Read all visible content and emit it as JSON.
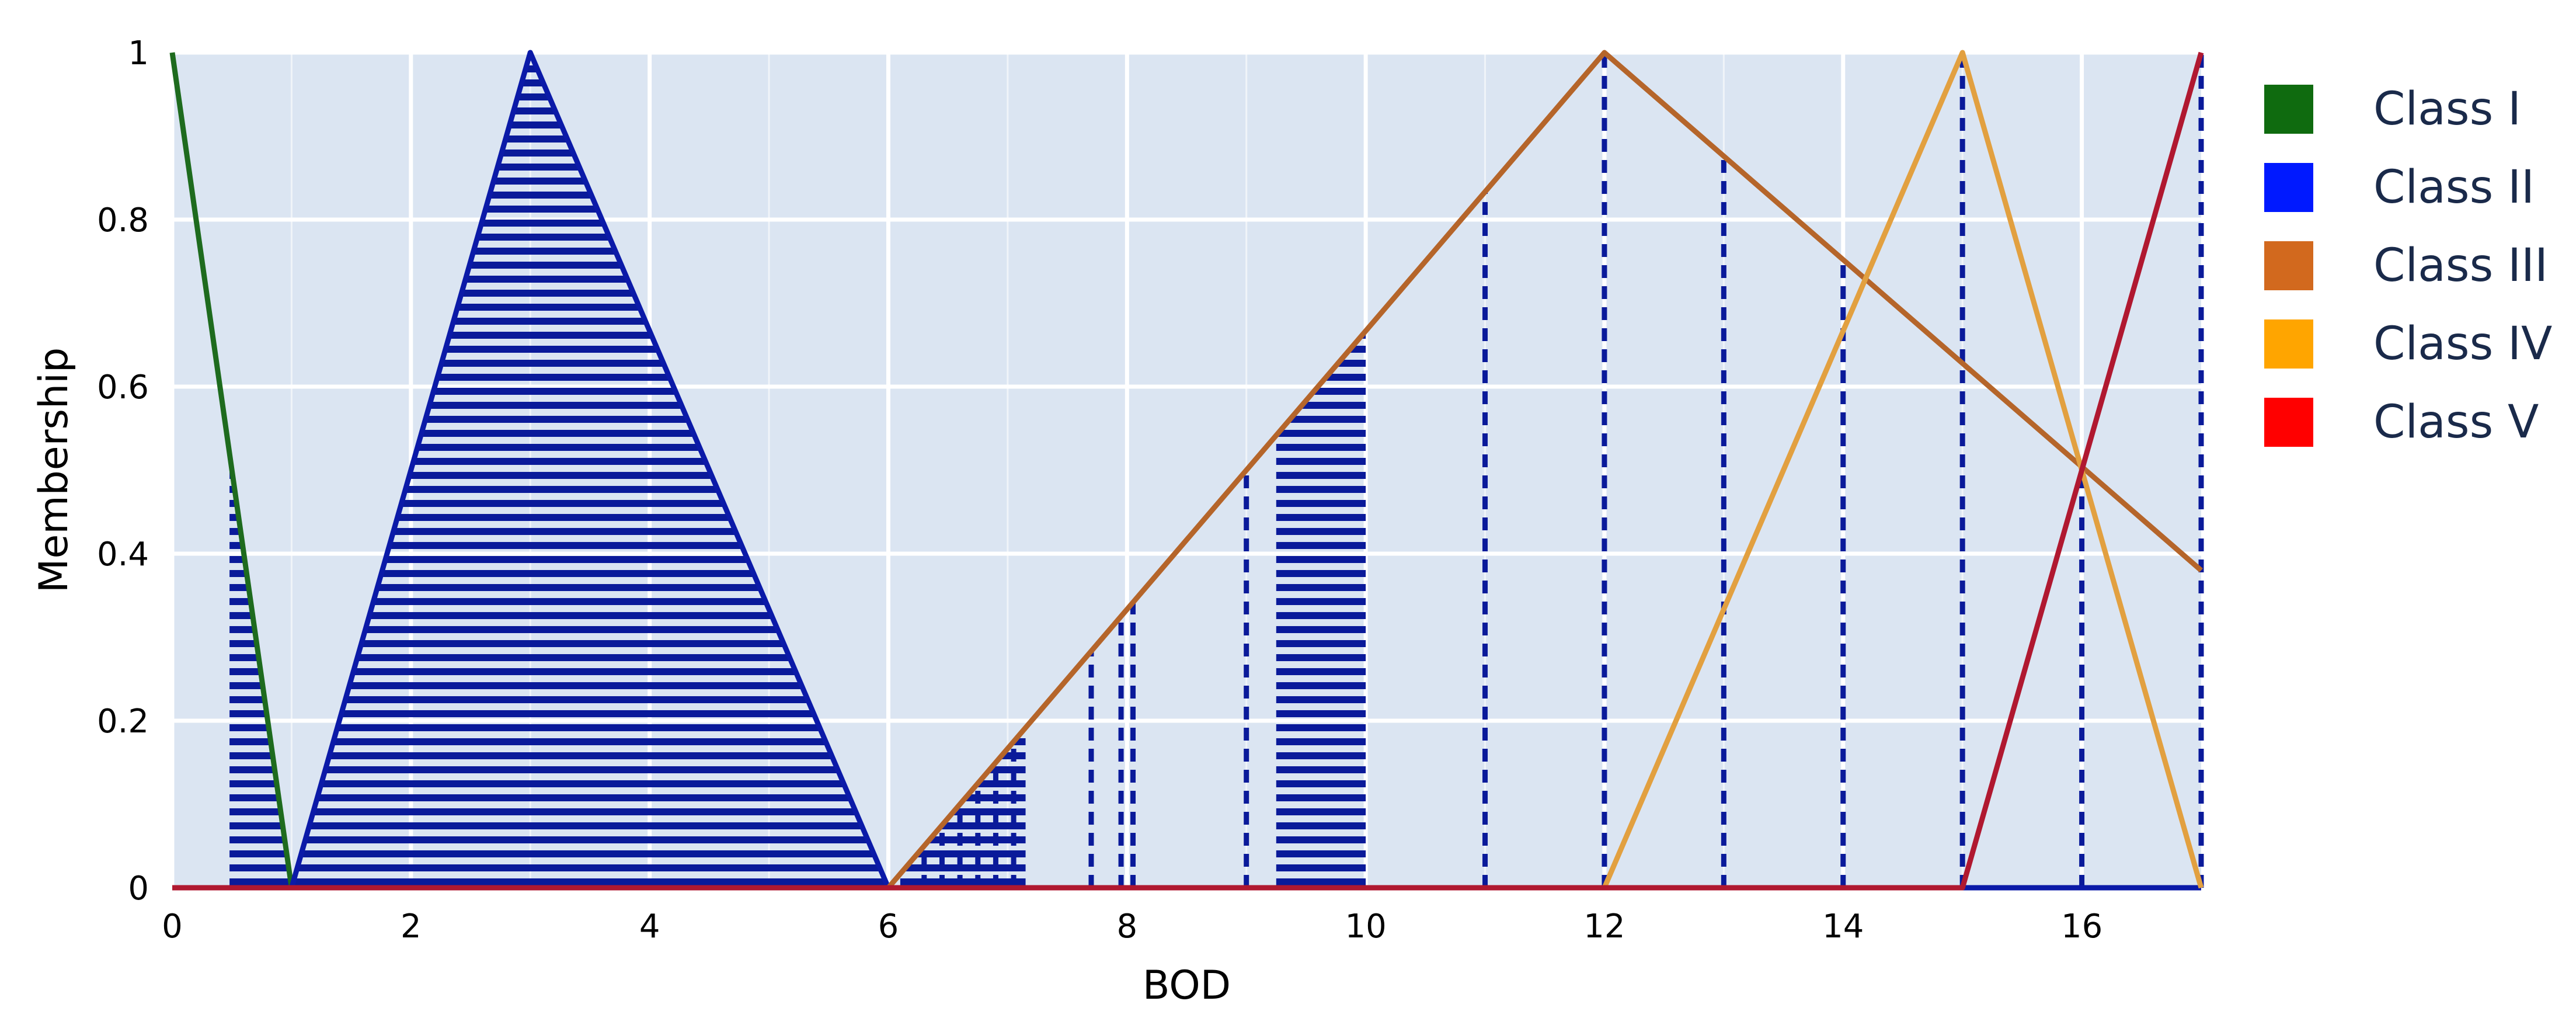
{
  "chart_data": {
    "type": "line",
    "title": "",
    "xlabel": "BOD",
    "ylabel": "Membership",
    "xlim": [
      0,
      17
    ],
    "ylim": [
      0,
      1
    ],
    "x_ticks": [
      0,
      2,
      4,
      6,
      8,
      10,
      12,
      14,
      16
    ],
    "x_tick_labels": [
      "0",
      "2",
      "4",
      "6",
      "8",
      "10",
      "12",
      "14",
      "16"
    ],
    "y_ticks": [
      0,
      0.2,
      0.4,
      0.6,
      0.8,
      1
    ],
    "y_tick_labels": [
      "0",
      "0.2",
      "0.4",
      "0.6",
      "0.8",
      "1"
    ],
    "grid": true,
    "legend_position": "right",
    "background_color": "#dbe5f2",
    "grid_color": "#ffffff",
    "fill_color": "#0a1a9a",
    "series": [
      {
        "name": "Class I",
        "color": "#1e6b1e",
        "points": [
          [
            0,
            1
          ],
          [
            1,
            0
          ],
          [
            17,
            0
          ]
        ]
      },
      {
        "name": "Class II",
        "color": "#0b1aa8",
        "points": [
          [
            0,
            0
          ],
          [
            1,
            0
          ],
          [
            3,
            1
          ],
          [
            6,
            0
          ],
          [
            17,
            0
          ]
        ]
      },
      {
        "name": "Class III",
        "color": "#b5652a",
        "points": [
          [
            0,
            0
          ],
          [
            6,
            0
          ],
          [
            12,
            1
          ],
          [
            17,
            0.38
          ]
        ]
      },
      {
        "name": "Class IV",
        "color": "#e2a040",
        "points": [
          [
            0,
            0
          ],
          [
            12,
            0
          ],
          [
            15,
            1
          ],
          [
            17,
            0
          ]
        ]
      },
      {
        "name": "Class V",
        "color": "#b01830",
        "points": [
          [
            0,
            0
          ],
          [
            15,
            0
          ],
          [
            17,
            1
          ]
        ]
      }
    ],
    "legend_swatch_colors": [
      "#0f6b0f",
      "#0019ff",
      "#d2691e",
      "#ffa500",
      "#ff0000"
    ],
    "filled_regions": [
      {
        "class": "Class I",
        "x_range": [
          0.48,
          0.98
        ]
      },
      {
        "class": "Class II",
        "x_range": [
          1.0,
          6.0
        ]
      },
      {
        "class": "Class III",
        "x_range": [
          6.1,
          7.15
        ]
      },
      {
        "class": "Class III",
        "x_range": [
          9.25,
          10.0
        ]
      }
    ],
    "dashed_lines_x": [
      6.3,
      6.45,
      6.6,
      6.75,
      6.9,
      7.05,
      7.7,
      7.95,
      8.05,
      9.0,
      11.0,
      12.0,
      13.0,
      14.0,
      15.0,
      16.0,
      17.0
    ]
  }
}
